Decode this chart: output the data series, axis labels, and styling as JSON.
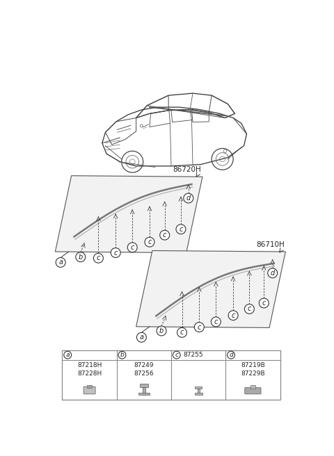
{
  "bg_color": "#ffffff",
  "text_color": "#222222",
  "ref_left": "86720H",
  "ref_right": "86710H",
  "part_a_codes": "87218H\n87228H",
  "part_b_codes": "87249\n87256",
  "part_c_code": "87255",
  "part_d_codes": "87219B\n87229B",
  "strip_face": "#f0f0f0",
  "strip_edge": "#555555",
  "molding_color": "#888888",
  "arrow_color": "#333333",
  "circle_color": "#333333",
  "table_border": "#888888"
}
